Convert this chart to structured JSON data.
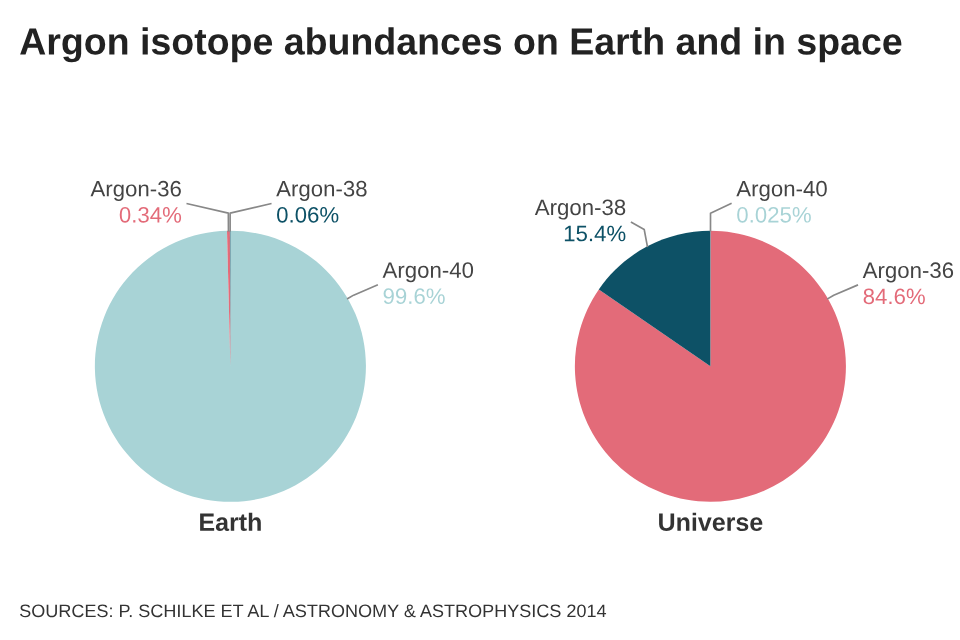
{
  "chart_data": [
    {
      "type": "pie",
      "title": "Argon isotope abundances on Earth and in space",
      "xlabel": "Earth",
      "categories": [
        "Argon-40",
        "Argon-36",
        "Argon-38"
      ],
      "values": [
        99.6,
        0.34,
        0.06
      ],
      "colors": [
        "#a8d3d6",
        "#e36b79",
        "#0d5166"
      ],
      "value_labels": [
        "99.6%",
        "0.34%",
        "0.06%"
      ]
    },
    {
      "type": "pie",
      "xlabel": "Universe",
      "categories": [
        "Argon-40",
        "Argon-36",
        "Argon-38"
      ],
      "values": [
        0.025,
        84.6,
        15.4
      ],
      "colors": [
        "#a8d3d6",
        "#e36b79",
        "#0d5166"
      ],
      "value_labels": [
        "0.025%",
        "84.6%",
        "15.4%"
      ],
      "annotations": [
        "SOURCES: P. SCHILKE ET AL / ASTRONOMY & ASTROPHYSICS 2014"
      ]
    }
  ]
}
